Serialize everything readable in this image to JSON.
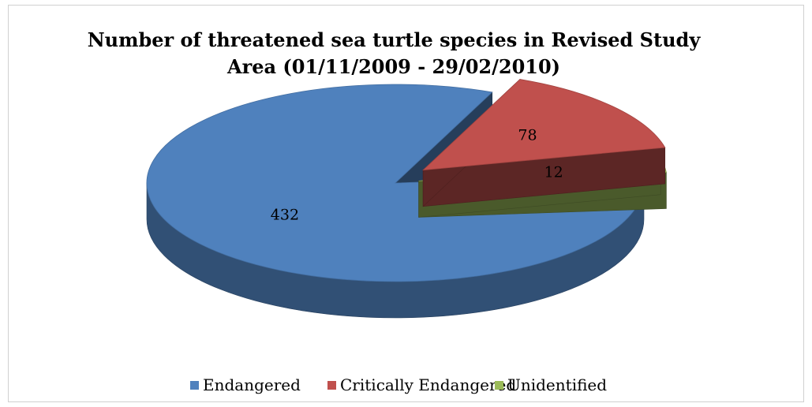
{
  "chart_data": {
    "type": "pie",
    "title": "Number of threatened sea turtle species in Revised Study Area (01/11/2009 - 29/02/2010)",
    "title_lines": [
      "Number of threatened sea turtle species in Revised Study",
      "Area (01/11/2009 - 29/02/2010)"
    ],
    "categories": [
      "Endangered",
      "Critically Endangered",
      "Unidentified"
    ],
    "values": [
      432,
      78,
      12
    ],
    "colors": [
      "#4f81bd",
      "#c0504d",
      "#9bbb59"
    ],
    "exploded": true,
    "legend_position": "bottom"
  }
}
